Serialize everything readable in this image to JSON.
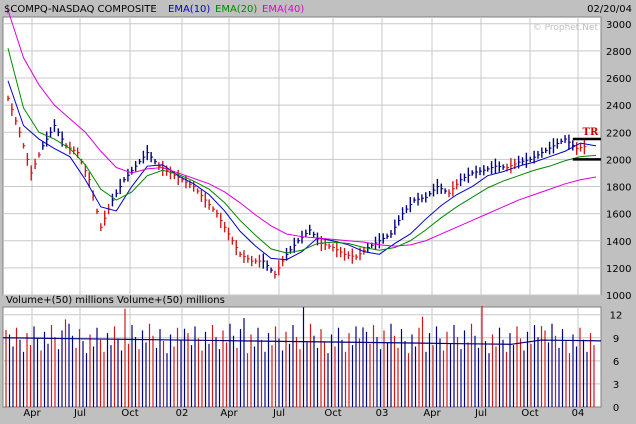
{
  "header": {
    "symbol": "$COMPQ-NASDAQ COMPOSITE",
    "ema10_label": "EMA(10)",
    "ema20_label": "EMA(20)",
    "ema40_label": "EMA(40)",
    "date": "02/20/04",
    "watermark": "© Prophet.Net"
  },
  "volume_panel": {
    "title": "Volume+(50) millions  Volume+(50) millions"
  },
  "annotation": {
    "label": "TR"
  },
  "colors": {
    "background": "#c0c0c0",
    "panel": "#ffffff",
    "grid": "#c8c8c8",
    "up_bar": "#000080",
    "down_bar": "#d01818",
    "ema10": "#0000cc",
    "ema20": "#008800",
    "ema40": "#dd00dd",
    "annotation": "#cc0000"
  },
  "chart_data": [
    {
      "type": "line",
      "title": "$COMPQ-NASDAQ COMPOSITE",
      "xlabel": "",
      "ylabel": "",
      "x_ticks": [
        "Apr",
        "Jul",
        "Oct",
        "02",
        "Apr",
        "Jul",
        "Oct",
        "03",
        "Apr",
        "Jul",
        "Oct",
        "04"
      ],
      "y_ticks": [
        1000,
        1200,
        1400,
        1600,
        1800,
        2000,
        2200,
        2400,
        2600,
        2800,
        3000
      ],
      "ylim": [
        1000,
        3050
      ],
      "grid": true,
      "series": [
        {
          "name": "EMA(10)",
          "color": "#0000cc",
          "x": [
            0,
            4,
            8,
            12,
            16,
            20,
            24,
            28,
            32,
            36,
            40,
            44,
            48,
            52,
            56,
            60,
            64,
            68,
            72,
            76,
            80,
            84,
            88,
            92,
            96,
            100,
            104,
            108,
            112,
            116,
            120,
            124,
            128,
            132,
            136,
            140,
            144,
            148,
            152
          ],
          "values": [
            2580,
            2250,
            2150,
            2080,
            2020,
            1850,
            1650,
            1620,
            1800,
            1950,
            1960,
            1880,
            1820,
            1740,
            1620,
            1470,
            1360,
            1270,
            1260,
            1320,
            1420,
            1400,
            1370,
            1320,
            1300,
            1380,
            1450,
            1560,
            1660,
            1740,
            1800,
            1880,
            1910,
            1950,
            1980,
            2020,
            2060,
            2120,
            2100
          ]
        },
        {
          "name": "EMA(20)",
          "color": "#008800",
          "x": [
            0,
            4,
            8,
            12,
            16,
            20,
            24,
            28,
            32,
            36,
            40,
            44,
            48,
            52,
            56,
            60,
            64,
            68,
            72,
            76,
            80,
            84,
            88,
            92,
            96,
            100,
            104,
            108,
            112,
            116,
            120,
            124,
            128,
            132,
            136,
            140,
            144,
            148,
            152
          ],
          "values": [
            2820,
            2380,
            2200,
            2150,
            2080,
            1960,
            1780,
            1700,
            1760,
            1880,
            1920,
            1890,
            1840,
            1780,
            1680,
            1550,
            1440,
            1340,
            1310,
            1330,
            1380,
            1390,
            1380,
            1350,
            1330,
            1350,
            1400,
            1480,
            1570,
            1650,
            1720,
            1790,
            1840,
            1880,
            1920,
            1950,
            1990,
            2020,
            2030
          ]
        },
        {
          "name": "EMA(40)",
          "color": "#dd00dd",
          "x": [
            0,
            4,
            8,
            12,
            16,
            20,
            24,
            28,
            32,
            36,
            40,
            44,
            48,
            52,
            56,
            60,
            64,
            68,
            72,
            76,
            80,
            84,
            88,
            92,
            96,
            100,
            104,
            108,
            112,
            116,
            120,
            124,
            128,
            132,
            136,
            140,
            144,
            148,
            152
          ],
          "values": [
            3100,
            2750,
            2550,
            2400,
            2300,
            2200,
            2060,
            1940,
            1900,
            1930,
            1940,
            1900,
            1860,
            1820,
            1760,
            1680,
            1590,
            1510,
            1450,
            1430,
            1420,
            1410,
            1400,
            1390,
            1370,
            1360,
            1370,
            1400,
            1450,
            1500,
            1550,
            1600,
            1650,
            1700,
            1740,
            1780,
            1820,
            1850,
            1870
          ]
        }
      ],
      "price_bars": {
        "x": [
          0,
          3,
          6,
          9,
          12,
          15,
          18,
          21,
          24,
          27,
          30,
          33,
          36,
          39,
          42,
          45,
          48,
          51,
          54,
          57,
          60,
          63,
          66,
          69,
          72,
          75,
          78,
          81,
          84,
          87,
          90,
          93,
          96,
          99,
          102,
          105,
          108,
          111,
          114,
          117,
          120,
          123,
          126,
          129,
          132,
          135,
          138,
          141,
          144,
          147,
          150
        ],
        "close": [
          2450,
          2200,
          1900,
          2100,
          2250,
          2100,
          2050,
          1850,
          1500,
          1700,
          1850,
          1950,
          2050,
          1950,
          1900,
          1850,
          1800,
          1700,
          1600,
          1450,
          1300,
          1250,
          1250,
          1150,
          1300,
          1400,
          1480,
          1380,
          1350,
          1300,
          1280,
          1350,
          1400,
          1450,
          1600,
          1700,
          1720,
          1800,
          1750,
          1850,
          1900,
          1920,
          1950,
          1940,
          1980,
          2000,
          2050,
          2100,
          2150,
          2080,
          2100
        ],
        "up": [
          false,
          false,
          false,
          true,
          true,
          false,
          false,
          false,
          false,
          true,
          true,
          true,
          true,
          false,
          false,
          false,
          false,
          false,
          false,
          false,
          false,
          false,
          true,
          false,
          true,
          true,
          true,
          false,
          false,
          false,
          false,
          true,
          true,
          true,
          true,
          true,
          true,
          true,
          false,
          true,
          true,
          true,
          true,
          false,
          true,
          true,
          true,
          true,
          true,
          false,
          true
        ]
      },
      "annotations": [
        {
          "text": "TR",
          "kind": "trading-range"
        }
      ]
    },
    {
      "type": "bar",
      "title": "Volume+(50) millions",
      "y_ticks": [
        0,
        3,
        6,
        9,
        12
      ],
      "ylim": [
        0,
        13
      ],
      "series_avg": {
        "name": "avg",
        "values_start": 9,
        "values_end": 8
      }
    }
  ]
}
